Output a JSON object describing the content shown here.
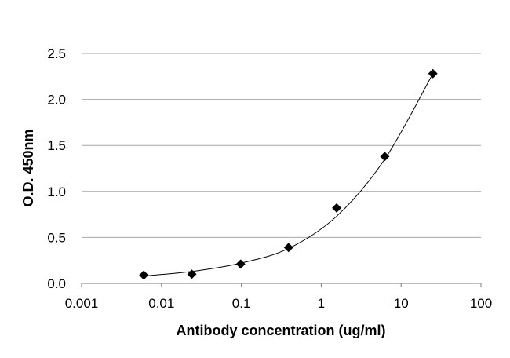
{
  "chart_data": {
    "type": "scatter",
    "title": "",
    "xlabel": "Antibody concentration (ug/ml)",
    "ylabel": "O.D. 450nm",
    "xscale": "log",
    "xlim": [
      0.001,
      100
    ],
    "ylim": [
      0,
      2.5
    ],
    "x_ticks": [
      0.001,
      0.01,
      0.1,
      1,
      10,
      100
    ],
    "x_tick_labels": [
      "0.001",
      "0.01",
      "0.1",
      "1",
      "10",
      "100"
    ],
    "y_ticks": [
      0,
      0.5,
      1,
      1.5,
      2,
      2.5
    ],
    "y_tick_labels": [
      "0.0",
      "0.5",
      "1.0",
      "1.5",
      "2.0",
      "2.5"
    ],
    "grid": "horizontal",
    "legend": "none",
    "marker": "diamond",
    "trendline": "smooth",
    "points": [
      {
        "x": 0.006,
        "y": 0.09
      },
      {
        "x": 0.024,
        "y": 0.1
      },
      {
        "x": 0.098,
        "y": 0.21
      },
      {
        "x": 0.39,
        "y": 0.39
      },
      {
        "x": 1.56,
        "y": 0.82
      },
      {
        "x": 6.25,
        "y": 1.38
      },
      {
        "x": 25,
        "y": 2.28
      }
    ],
    "trendline_points": [
      {
        "x": 0.006,
        "y": 0.08
      },
      {
        "x": 0.024,
        "y": 0.13
      },
      {
        "x": 0.098,
        "y": 0.22
      },
      {
        "x": 0.39,
        "y": 0.38
      },
      {
        "x": 1.56,
        "y": 0.73
      },
      {
        "x": 6.25,
        "y": 1.35
      },
      {
        "x": 25,
        "y": 2.28
      }
    ]
  }
}
